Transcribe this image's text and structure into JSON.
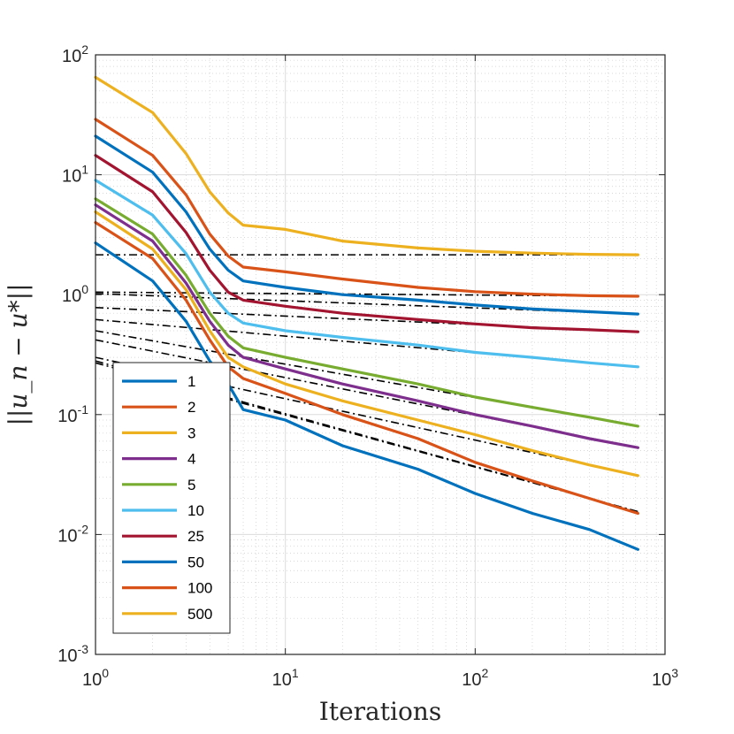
{
  "chart_data": {
    "type": "line",
    "xlabel": "Iterations",
    "ylabel": "||u_n − u*||",
    "x_scale": "log",
    "y_scale": "log",
    "xlim": [
      1,
      1000
    ],
    "ylim": [
      0.001,
      100
    ],
    "grid": true,
    "minor_grid": true,
    "legend_position": "lower-left",
    "x_ticks": [
      {
        "value": 1,
        "base": "10",
        "exp": "0"
      },
      {
        "value": 10,
        "base": "10",
        "exp": "1"
      },
      {
        "value": 100,
        "base": "10",
        "exp": "2"
      },
      {
        "value": 1000,
        "base": "10",
        "exp": "3"
      }
    ],
    "y_ticks": [
      {
        "value": 0.001,
        "base": "10",
        "exp": "-3"
      },
      {
        "value": 0.01,
        "base": "10",
        "exp": "-2"
      },
      {
        "value": 0.1,
        "base": "10",
        "exp": "-1"
      },
      {
        "value": 1,
        "base": "10",
        "exp": "0"
      },
      {
        "value": 10,
        "base": "10",
        "exp": "1"
      },
      {
        "value": 100,
        "base": "10",
        "exp": "2"
      }
    ],
    "series": [
      {
        "name": "1",
        "color": "#0072BD",
        "points": [
          [
            1,
            2.7
          ],
          [
            2,
            1.3
          ],
          [
            3,
            0.6
          ],
          [
            4,
            0.28
          ],
          [
            5,
            0.18
          ],
          [
            6,
            0.11
          ],
          [
            10,
            0.09
          ],
          [
            20,
            0.055
          ],
          [
            50,
            0.035
          ],
          [
            100,
            0.022
          ],
          [
            200,
            0.015
          ],
          [
            400,
            0.011
          ],
          [
            720,
            0.0075
          ]
        ],
        "fit": [
          [
            1,
            0.28
          ],
          [
            720,
            0.0155
          ]
        ]
      },
      {
        "name": "2",
        "color": "#D95319",
        "points": [
          [
            1,
            4.0
          ],
          [
            2,
            2.0
          ],
          [
            3,
            0.9
          ],
          [
            4,
            0.42
          ],
          [
            5,
            0.25
          ],
          [
            6,
            0.2
          ],
          [
            10,
            0.15
          ],
          [
            20,
            0.1
          ],
          [
            50,
            0.063
          ],
          [
            100,
            0.04
          ],
          [
            200,
            0.028
          ],
          [
            400,
            0.02
          ],
          [
            720,
            0.015
          ]
        ],
        "fit": [
          [
            1,
            0.27
          ],
          [
            720,
            0.0155
          ]
        ]
      },
      {
        "name": "3",
        "color": "#EDB120",
        "points": [
          [
            1,
            4.9
          ],
          [
            2,
            2.4
          ],
          [
            3,
            1.1
          ],
          [
            4,
            0.5
          ],
          [
            5,
            0.3
          ],
          [
            6,
            0.25
          ],
          [
            10,
            0.18
          ],
          [
            20,
            0.13
          ],
          [
            50,
            0.09
          ],
          [
            100,
            0.068
          ],
          [
            200,
            0.05
          ],
          [
            400,
            0.038
          ],
          [
            720,
            0.031
          ]
        ],
        "fit": [
          [
            1,
            0.3
          ],
          [
            720,
            0.031
          ]
        ]
      },
      {
        "name": "4",
        "color": "#7E2F8E",
        "points": [
          [
            1,
            5.6
          ],
          [
            2,
            2.8
          ],
          [
            3,
            1.25
          ],
          [
            4,
            0.6
          ],
          [
            5,
            0.38
          ],
          [
            6,
            0.3
          ],
          [
            10,
            0.24
          ],
          [
            20,
            0.18
          ],
          [
            50,
            0.13
          ],
          [
            100,
            0.1
          ],
          [
            200,
            0.08
          ],
          [
            400,
            0.063
          ],
          [
            720,
            0.053
          ]
        ],
        "fit": [
          [
            1,
            0.42
          ],
          [
            720,
            0.053
          ]
        ]
      },
      {
        "name": "5",
        "color": "#77AC30",
        "points": [
          [
            1,
            6.3
          ],
          [
            2,
            3.2
          ],
          [
            3,
            1.45
          ],
          [
            4,
            0.7
          ],
          [
            5,
            0.45
          ],
          [
            6,
            0.36
          ],
          [
            10,
            0.3
          ],
          [
            20,
            0.24
          ],
          [
            50,
            0.18
          ],
          [
            100,
            0.14
          ],
          [
            200,
            0.115
          ],
          [
            400,
            0.095
          ],
          [
            720,
            0.08
          ]
        ],
        "fit": [
          [
            1,
            0.5
          ],
          [
            720,
            0.08
          ]
        ]
      },
      {
        "name": "10",
        "color": "#4DBEEE",
        "points": [
          [
            1,
            9.0
          ],
          [
            2,
            4.6
          ],
          [
            3,
            2.2
          ],
          [
            4,
            1.05
          ],
          [
            5,
            0.7
          ],
          [
            6,
            0.58
          ],
          [
            10,
            0.5
          ],
          [
            20,
            0.44
          ],
          [
            50,
            0.38
          ],
          [
            100,
            0.33
          ],
          [
            200,
            0.3
          ],
          [
            400,
            0.27
          ],
          [
            720,
            0.25
          ]
        ],
        "fit": [
          [
            1,
            0.62
          ],
          [
            720,
            0.25
          ]
        ]
      },
      {
        "name": "25",
        "color": "#A2142F",
        "points": [
          [
            1,
            14.5
          ],
          [
            2,
            7.2
          ],
          [
            3,
            3.3
          ],
          [
            4,
            1.6
          ],
          [
            5,
            1.05
          ],
          [
            6,
            0.9
          ],
          [
            10,
            0.8
          ],
          [
            20,
            0.7
          ],
          [
            50,
            0.62
          ],
          [
            100,
            0.57
          ],
          [
            200,
            0.53
          ],
          [
            400,
            0.51
          ],
          [
            720,
            0.49
          ]
        ],
        "fit": [
          [
            1,
            0.78
          ],
          [
            720,
            0.49
          ]
        ]
      },
      {
        "name": "50",
        "color": "#0072BD",
        "points": [
          [
            1,
            21
          ],
          [
            2,
            10.5
          ],
          [
            3,
            4.9
          ],
          [
            4,
            2.4
          ],
          [
            5,
            1.6
          ],
          [
            6,
            1.3
          ],
          [
            10,
            1.15
          ],
          [
            20,
            1.0
          ],
          [
            50,
            0.9
          ],
          [
            100,
            0.82
          ],
          [
            200,
            0.76
          ],
          [
            400,
            0.72
          ],
          [
            720,
            0.69
          ]
        ],
        "fit": [
          [
            1,
            1.02
          ],
          [
            720,
            0.69
          ]
        ]
      },
      {
        "name": "100",
        "color": "#D95319",
        "points": [
          [
            1,
            29
          ],
          [
            2,
            14.5
          ],
          [
            3,
            6.8
          ],
          [
            4,
            3.2
          ],
          [
            5,
            2.1
          ],
          [
            6,
            1.7
          ],
          [
            10,
            1.55
          ],
          [
            20,
            1.35
          ],
          [
            50,
            1.15
          ],
          [
            100,
            1.06
          ],
          [
            200,
            1.01
          ],
          [
            400,
            0.98
          ],
          [
            720,
            0.97
          ]
        ],
        "fit": [
          [
            1,
            1.05
          ],
          [
            720,
            0.97
          ]
        ]
      },
      {
        "name": "500",
        "color": "#EDB120",
        "points": [
          [
            1,
            65
          ],
          [
            2,
            33
          ],
          [
            3,
            15
          ],
          [
            4,
            7.2
          ],
          [
            5,
            4.8
          ],
          [
            6,
            3.8
          ],
          [
            10,
            3.5
          ],
          [
            20,
            2.8
          ],
          [
            50,
            2.45
          ],
          [
            100,
            2.3
          ],
          [
            200,
            2.22
          ],
          [
            400,
            2.17
          ],
          [
            720,
            2.15
          ]
        ],
        "fit": [
          [
            1,
            2.15
          ],
          [
            720,
            2.15
          ]
        ]
      }
    ]
  }
}
